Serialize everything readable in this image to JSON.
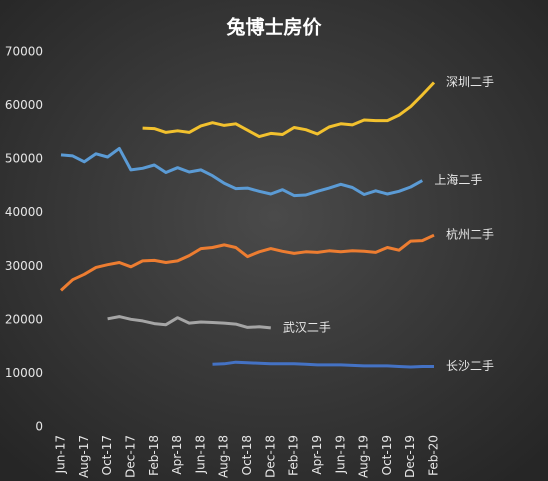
{
  "chart_data": {
    "type": "line",
    "title": "兔博士房价",
    "categories": [
      "Jun-17",
      null,
      "Aug-17",
      null,
      "Oct-17",
      null,
      "Dec-17",
      null,
      "Feb-18",
      null,
      "Apr-18",
      null,
      "Jun-18",
      null,
      "Aug-18",
      null,
      "Oct-18",
      null,
      "Dec-18",
      null,
      "Feb-19",
      null,
      "Apr-19",
      null,
      "Jun-19",
      null,
      "Aug-19",
      null,
      "Oct-19",
      null,
      "Dec-19",
      null,
      "Feb-20"
    ],
    "series": [
      {
        "name": "深圳二手",
        "color": "#f2c12e",
        "values": [
          null,
          null,
          null,
          null,
          null,
          null,
          null,
          55800,
          55700,
          55000,
          55300,
          55000,
          56200,
          56800,
          56300,
          56600,
          55400,
          54200,
          54800,
          54600,
          55900,
          55500,
          54700,
          56000,
          56600,
          56400,
          57300,
          57200,
          57200,
          58200,
          59800,
          62000,
          64300
        ]
      },
      {
        "name": "上海二手",
        "color": "#5b9bd5",
        "values": [
          50800,
          50600,
          49500,
          51000,
          50400,
          52000,
          48000,
          48300,
          48900,
          47500,
          48400,
          47600,
          48000,
          46900,
          45500,
          44500,
          44600,
          44000,
          43500,
          44300,
          43200,
          43300,
          44000,
          44600,
          45300,
          44700,
          43400,
          44100,
          43500,
          44000,
          44800,
          46000,
          null
        ]
      },
      {
        "name": "杭州二手",
        "color": "#ed7d31",
        "values": [
          25500,
          27500,
          28500,
          29800,
          30300,
          30700,
          29900,
          31000,
          31100,
          30700,
          31000,
          32000,
          33300,
          33500,
          34000,
          33500,
          31800,
          32700,
          33300,
          32800,
          32400,
          32700,
          32600,
          32900,
          32700,
          32900,
          32800,
          32600,
          33500,
          33000,
          34700,
          34800,
          35800
        ]
      },
      {
        "name": "武汉二手",
        "color": "#a5a5a5",
        "values": [
          null,
          null,
          null,
          null,
          20200,
          20600,
          20100,
          19800,
          19300,
          19100,
          20400,
          19400,
          19600,
          19500,
          19400,
          19200,
          18600,
          18700,
          18500,
          null,
          null,
          null,
          null,
          null,
          null,
          null,
          null,
          null,
          null,
          null,
          null,
          null,
          null
        ]
      },
      {
        "name": "长沙二手",
        "color": "#4472c4",
        "values": [
          null,
          null,
          null,
          null,
          null,
          null,
          null,
          null,
          null,
          null,
          null,
          null,
          null,
          11700,
          11800,
          12100,
          12000,
          11900,
          11800,
          11800,
          11800,
          11700,
          11600,
          11600,
          11600,
          11500,
          11400,
          11400,
          11400,
          11300,
          11200,
          11300,
          11300
        ]
      }
    ],
    "ylim": [
      0,
      70000
    ],
    "yticks": [
      0,
      10000,
      20000,
      30000,
      40000,
      50000,
      60000,
      70000
    ]
  }
}
